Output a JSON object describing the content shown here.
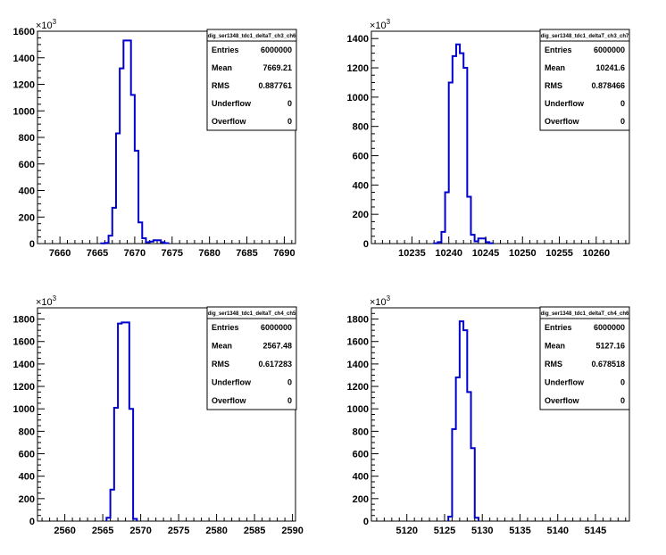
{
  "chart_data": [
    {
      "type": "bar",
      "title": "",
      "stat_title": "dig_ser1348_tdc1_deltaT_ch3_ch6",
      "y_multiplier": "×10",
      "y_multiplier_exp": "3",
      "xlim": [
        7657,
        7691.5
      ],
      "ylim": [
        0,
        1600
      ],
      "xticks": [
        7660,
        7665,
        7670,
        7675,
        7680,
        7685,
        7690
      ],
      "yticks": [
        0,
        200,
        400,
        600,
        800,
        1000,
        1200,
        1400,
        1600
      ],
      "bin_width": 0.5,
      "bins_x": [
        7665.5,
        7666.0,
        7666.5,
        7667.0,
        7667.5,
        7668.0,
        7668.5,
        7669.0,
        7669.5,
        7670.0,
        7670.5,
        7671.0,
        7671.5,
        7672.0,
        7672.5,
        7673.0,
        7673.5,
        7674.0
      ],
      "values": [
        2,
        5,
        60,
        270,
        830,
        1320,
        1530,
        1530,
        1120,
        700,
        160,
        40,
        10,
        15,
        25,
        25,
        10,
        3
      ],
      "stats": [
        {
          "label": "Entries",
          "value": "6000000"
        },
        {
          "label": "Mean",
          "value": "7669.21"
        },
        {
          "label": "RMS",
          "value": "0.887761"
        },
        {
          "label": "Underflow",
          "value": "0"
        },
        {
          "label": "Overflow",
          "value": "0"
        }
      ]
    },
    {
      "type": "bar",
      "title": "",
      "stat_title": "dig_ser1348_tdc1_deltaT_ch3_ch7",
      "y_multiplier": "×10",
      "y_multiplier_exp": "3",
      "xlim": [
        10229.5,
        10264.5
      ],
      "ylim": [
        0,
        1450
      ],
      "xticks": [
        10235,
        10240,
        10245,
        10250,
        10255,
        10260
      ],
      "yticks": [
        0,
        200,
        400,
        600,
        800,
        1000,
        1200,
        1400
      ],
      "bin_width": 0.5,
      "bins_x": [
        10238.0,
        10238.5,
        10239.0,
        10239.5,
        10240.0,
        10240.5,
        10241.0,
        10241.5,
        10242.0,
        10242.5,
        10243.0,
        10243.5,
        10244.0,
        10244.5,
        10245.0,
        10245.5
      ],
      "values": [
        2,
        10,
        80,
        350,
        1100,
        1280,
        1360,
        1300,
        1200,
        320,
        60,
        15,
        35,
        35,
        10,
        2
      ],
      "stats": [
        {
          "label": "Entries",
          "value": "6000000"
        },
        {
          "label": "Mean",
          "value": "10241.6"
        },
        {
          "label": "RMS",
          "value": "0.878466"
        },
        {
          "label": "Underflow",
          "value": "0"
        },
        {
          "label": "Overflow",
          "value": "0"
        }
      ]
    },
    {
      "type": "bar",
      "title": "",
      "stat_title": "dig_ser1348_tdc1_deltaT_ch4_ch5",
      "y_multiplier": "×10",
      "y_multiplier_exp": "3",
      "xlim": [
        2556.4,
        2590.4
      ],
      "ylim": [
        0,
        1900
      ],
      "xticks": [
        2560,
        2565,
        2570,
        2575,
        2580,
        2585,
        2590
      ],
      "yticks": [
        0,
        200,
        400,
        600,
        800,
        1000,
        1200,
        1400,
        1600,
        1800
      ],
      "bin_width": 0.5,
      "bins_x": [
        2565.5,
        2566.0,
        2566.5,
        2567.0,
        2567.5,
        2568.0,
        2568.5,
        2569.0
      ],
      "values": [
        30,
        280,
        1010,
        1760,
        1770,
        1770,
        1000,
        20
      ],
      "stats": [
        {
          "label": "Entries",
          "value": "6000000"
        },
        {
          "label": "Mean",
          "value": "2567.48"
        },
        {
          "label": "RMS",
          "value": "0.617283"
        },
        {
          "label": "Underflow",
          "value": "0"
        },
        {
          "label": "Overflow",
          "value": "0"
        }
      ]
    },
    {
      "type": "bar",
      "title": "",
      "stat_title": "dig_ser1348_tdc1_deltaT_ch4_ch6",
      "y_multiplier": "×10",
      "y_multiplier_exp": "3",
      "xlim": [
        5115.3,
        5149.5
      ],
      "ylim": [
        0,
        1900
      ],
      "xticks": [
        5120,
        5125,
        5130,
        5135,
        5140,
        5145
      ],
      "yticks": [
        0,
        200,
        400,
        600,
        800,
        1000,
        1200,
        1400,
        1600,
        1800
      ],
      "bin_width": 0.5,
      "bins_x": [
        5125.5,
        5126.0,
        5126.5,
        5127.0,
        5127.5,
        5128.0,
        5128.5,
        5129.0
      ],
      "values": [
        40,
        820,
        1280,
        1780,
        1700,
        1150,
        650,
        30
      ],
      "stats": [
        {
          "label": "Entries",
          "value": "6000000"
        },
        {
          "label": "Mean",
          "value": "5127.16"
        },
        {
          "label": "RMS",
          "value": "0.678518"
        },
        {
          "label": "Underflow",
          "value": "0"
        },
        {
          "label": "Overflow",
          "value": "0"
        }
      ]
    }
  ]
}
